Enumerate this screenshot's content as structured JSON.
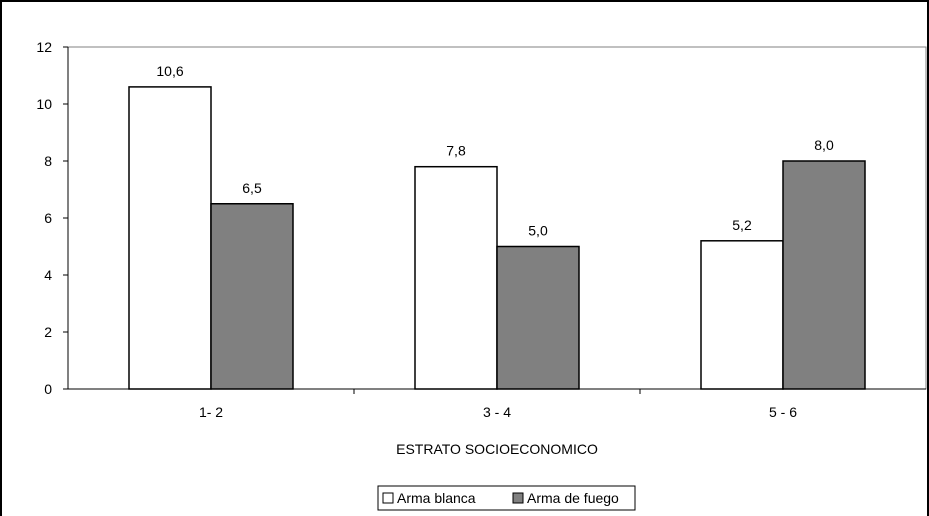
{
  "chart_data": {
    "type": "bar",
    "title": "",
    "xlabel": "ESTRATO SOCIOECONOMICO",
    "ylabel": "",
    "categories": [
      "1- 2",
      "3 - 4",
      "5 - 6"
    ],
    "series": [
      {
        "name": "Arma blanca",
        "values": [
          10.6,
          7.8,
          5.2
        ],
        "labels": [
          "10,6",
          "7,8",
          "5,2"
        ],
        "color": "#ffffff"
      },
      {
        "name": "Arma de fuego",
        "values": [
          6.5,
          5.0,
          8.0
        ],
        "labels": [
          "6,5",
          "5,0",
          "8,0"
        ],
        "color": "#808080"
      }
    ],
    "yticks": [
      0,
      2,
      4,
      6,
      8,
      10,
      12
    ],
    "ylim": [
      0,
      12
    ],
    "grid": false,
    "legend_position": "bottom"
  }
}
